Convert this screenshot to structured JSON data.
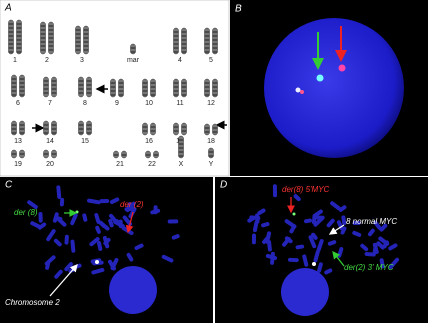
{
  "panel_a": {
    "label": "A",
    "chromosome_labels": [
      "1",
      "2",
      "3",
      "mar",
      "4",
      "5",
      "6",
      "7",
      "8",
      "9",
      "10",
      "11",
      "12",
      "13",
      "14",
      "15",
      "16",
      "17",
      "18",
      "19",
      "20",
      "21",
      "22",
      "X",
      "Y"
    ]
  },
  "panel_b": {
    "label": "B"
  },
  "panel_c": {
    "label": "C",
    "annotations": [
      "der (8)",
      "der (2)",
      "Chromosome 2"
    ]
  },
  "panel_d": {
    "label": "D",
    "annotations": [
      "der(8) 5'MYC",
      "8 normal MYC",
      "der(2) 3' MYC"
    ]
  }
}
